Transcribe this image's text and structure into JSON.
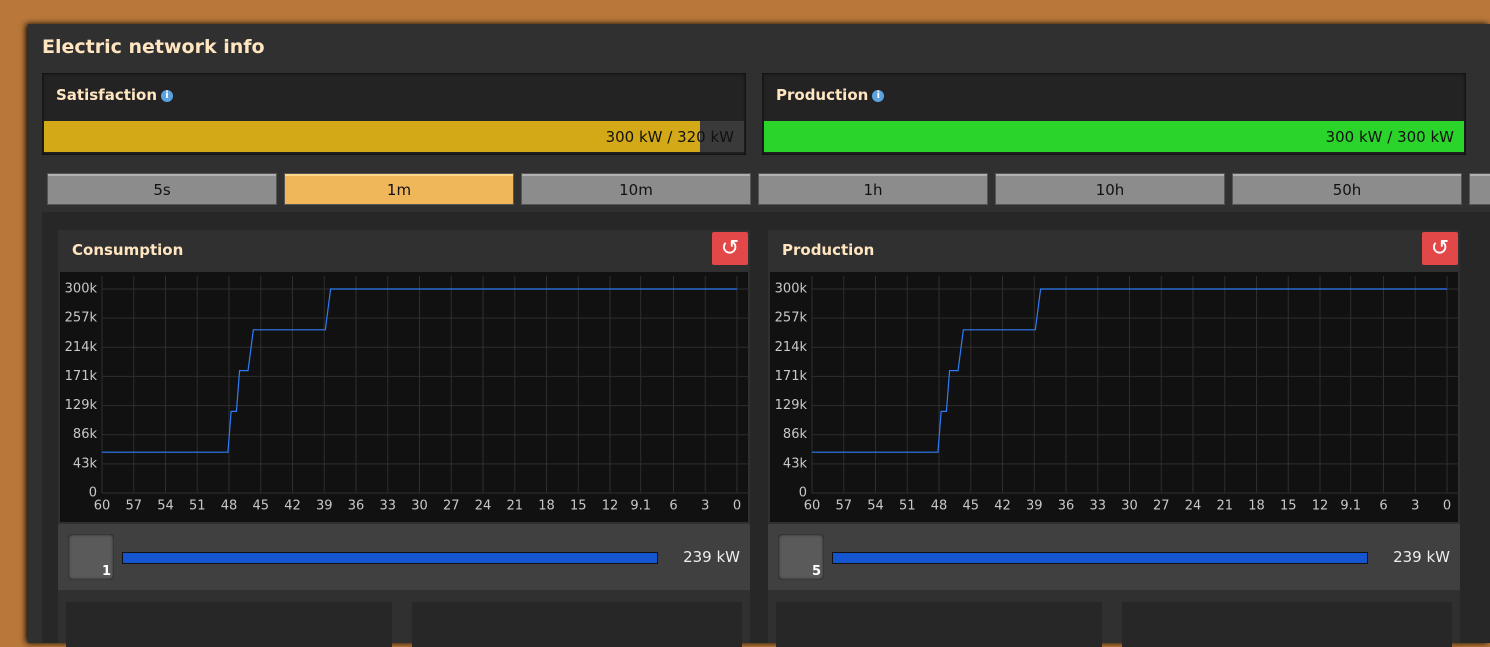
{
  "window": {
    "title": "Electric network info"
  },
  "summary": [
    {
      "label": "Satisfaction",
      "text": "300 kW / 320 kW",
      "value": 300,
      "max": 320,
      "color": "#d4a918"
    },
    {
      "label": "Production",
      "text": "300 kW / 300 kW",
      "value": 300,
      "max": 300,
      "color": "#2ad42a"
    }
  ],
  "tabs": {
    "labels": [
      "5s",
      "1m",
      "10m",
      "1h",
      "10h",
      "50h"
    ],
    "selected_index": 1
  },
  "panels": [
    {
      "title": "Consumption",
      "chart": {
        "type": "line",
        "x": [
          60,
          48.1,
          47.8,
          47.3,
          47,
          46.2,
          45.7,
          38.9,
          38.4,
          0
        ],
        "series": [
          {
            "color": "#2f7cf6",
            "values": [
              60000,
              60000,
              120000,
              120000,
              180000,
              180000,
              240000,
              240000,
              300000,
              300000
            ]
          }
        ],
        "xlim": [
          60,
          0
        ],
        "ylim": [
          0,
          300000
        ],
        "xticks": [
          60,
          57,
          54,
          51,
          48,
          45,
          42,
          39,
          36,
          33,
          30,
          27,
          24,
          21,
          18,
          15,
          12,
          9.1,
          6,
          3,
          0
        ],
        "yticks": [
          0,
          {
            "value": 42857,
            "label": "43k"
          },
          {
            "value": 85714,
            "label": "86k"
          },
          {
            "value": 128571,
            "label": "129k"
          },
          {
            "value": 171429,
            "label": "171k"
          },
          {
            "value": 214286,
            "label": "214k"
          },
          {
            "value": 257143,
            "label": "257k"
          },
          {
            "value": 300000,
            "label": "300k"
          }
        ],
        "grid": true
      },
      "entity": {
        "count": 1,
        "value": "239 kW"
      }
    },
    {
      "title": "Production",
      "chart": {
        "type": "line",
        "x": [
          60,
          48.1,
          47.8,
          47.3,
          47,
          46.2,
          45.7,
          38.9,
          38.4,
          0
        ],
        "series": [
          {
            "color": "#2f7cf6",
            "values": [
              60000,
              60000,
              120000,
              120000,
              180000,
              180000,
              240000,
              240000,
              300000,
              300000
            ]
          }
        ],
        "xlim": [
          60,
          0
        ],
        "ylim": [
          0,
          300000
        ],
        "xticks": [
          60,
          57,
          54,
          51,
          48,
          45,
          42,
          39,
          36,
          33,
          30,
          27,
          24,
          21,
          18,
          15,
          12,
          9.1,
          6,
          3,
          0
        ],
        "yticks": [
          0,
          {
            "value": 42857,
            "label": "43k"
          },
          {
            "value": 85714,
            "label": "86k"
          },
          {
            "value": 128571,
            "label": "129k"
          },
          {
            "value": 171429,
            "label": "171k"
          },
          {
            "value": 214286,
            "label": "214k"
          },
          {
            "value": 257143,
            "label": "257k"
          },
          {
            "value": 300000,
            "label": "300k"
          }
        ],
        "grid": true
      },
      "entity": {
        "count": 5,
        "value": "239 kW"
      }
    }
  ]
}
